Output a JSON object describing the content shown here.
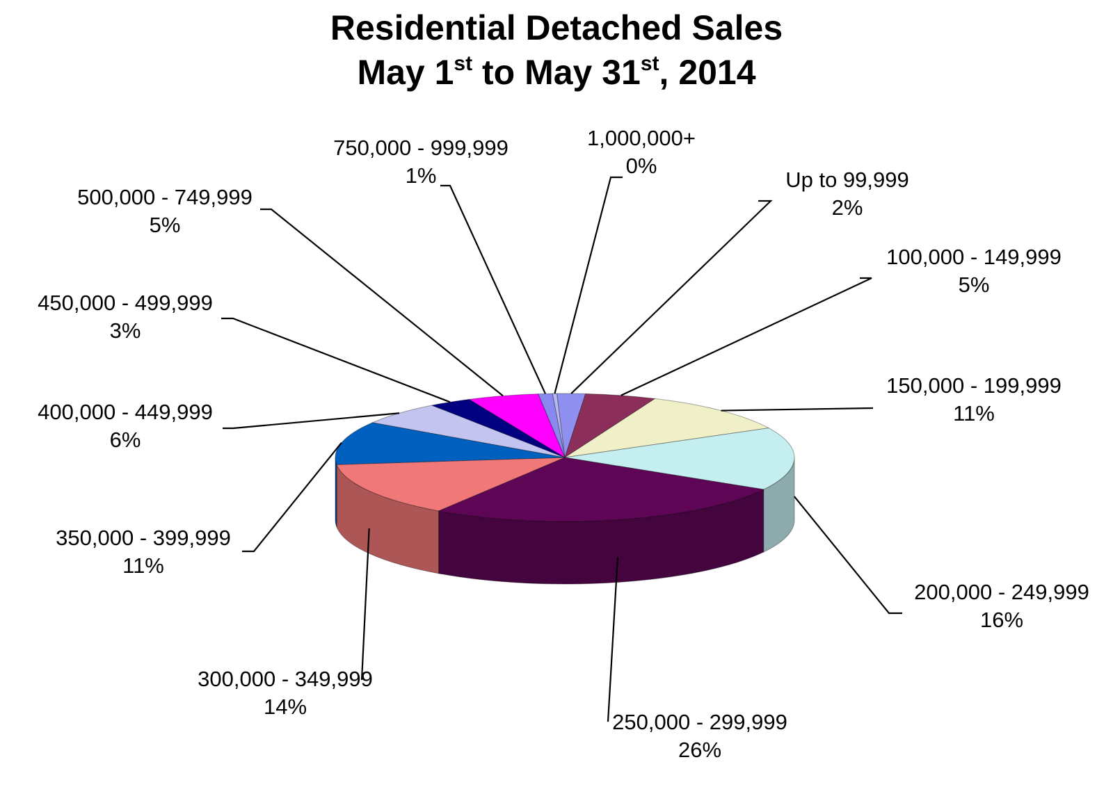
{
  "chart_data": {
    "type": "pie",
    "title": {
      "line1": "Residential Detached Sales",
      "line2_a": "May 1",
      "line2_sup1": "st",
      "line2_b": " to May 31",
      "line2_sup2": "st",
      "line2_c": ", 2014"
    },
    "style": "3d",
    "slices": [
      {
        "label": "Up to 99,999",
        "pct": "2%",
        "value": 2,
        "color": "#9090f0"
      },
      {
        "label": "100,000 - 149,999",
        "pct": "5%",
        "value": 5,
        "color": "#8b2e5a"
      },
      {
        "label": "150,000 - 199,999",
        "pct": "11%",
        "value": 11,
        "color": "#f0f0c8"
      },
      {
        "label": "200,000 - 249,999",
        "pct": "16%",
        "value": 16,
        "color": "#c4eef0"
      },
      {
        "label": "250,000 - 299,999",
        "pct": "26%",
        "value": 26,
        "color": "#5e0556"
      },
      {
        "label": "300,000 - 349,999",
        "pct": "14%",
        "value": 14,
        "color": "#f07878"
      },
      {
        "label": "350,000 - 399,999",
        "pct": "11%",
        "value": 11,
        "color": "#0060c0"
      },
      {
        "label": "400,000 - 449,999",
        "pct": "6%",
        "value": 6,
        "color": "#c4c4f0"
      },
      {
        "label": "450,000 - 499,999",
        "pct": "3%",
        "value": 3,
        "color": "#000080"
      },
      {
        "label": "500,000 - 749,999",
        "pct": "5%",
        "value": 5,
        "color": "#ff00ff"
      },
      {
        "label": "750,000 - 999,999",
        "pct": "1%",
        "value": 1,
        "color": "#8888ee"
      },
      {
        "label": "1,000,000+",
        "pct": "0%",
        "value": 0.3,
        "color": "#b8b8f0"
      }
    ]
  }
}
